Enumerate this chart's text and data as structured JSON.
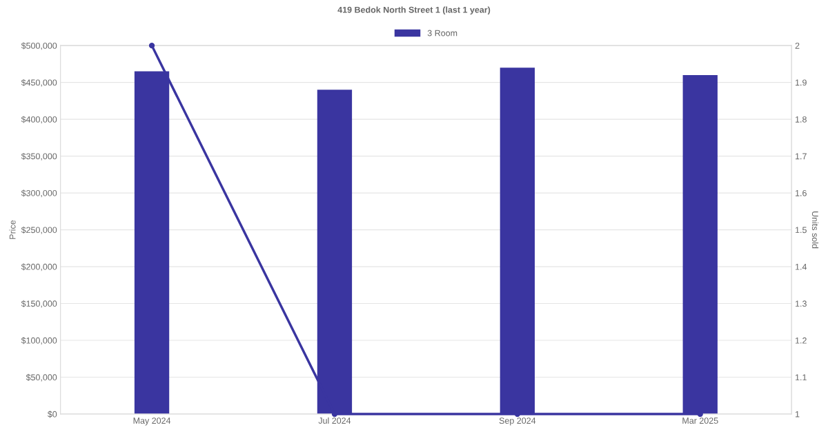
{
  "chart_data": {
    "type": "bar",
    "title": "419 Bedok North Street 1 (last 1 year)",
    "categories": [
      "May 2024",
      "Jul 2024",
      "Sep 2024",
      "Mar 2025"
    ],
    "series": [
      {
        "name": "3 Room",
        "color": "#3a35a0",
        "values": [
          465000,
          440000,
          470000,
          460000
        ]
      },
      {
        "type": "line",
        "axis": "y2",
        "color": "#3a35a0",
        "values": [
          2,
          1,
          1,
          1
        ],
        "marker": "circle"
      }
    ],
    "ylabel": "Price",
    "y2label": "Units sold",
    "ylim": [
      0,
      500000
    ],
    "yticks": [
      {
        "value": 0,
        "label": "$0"
      },
      {
        "value": 50000,
        "label": "$50,000"
      },
      {
        "value": 100000,
        "label": "$100,000"
      },
      {
        "value": 150000,
        "label": "$150,000"
      },
      {
        "value": 200000,
        "label": "$200,000"
      },
      {
        "value": 250000,
        "label": "$250,000"
      },
      {
        "value": 300000,
        "label": "$300,000"
      },
      {
        "value": 350000,
        "label": "$350,000"
      },
      {
        "value": 400000,
        "label": "$400,000"
      },
      {
        "value": 450000,
        "label": "$450,000"
      },
      {
        "value": 500000,
        "label": "$500,000"
      }
    ],
    "y2lim": [
      1,
      2
    ],
    "y2ticks": [
      1,
      1.1,
      1.2,
      1.3,
      1.4,
      1.5,
      1.6,
      1.7,
      1.8,
      1.9,
      2
    ],
    "grid": "y",
    "legend": "top"
  }
}
